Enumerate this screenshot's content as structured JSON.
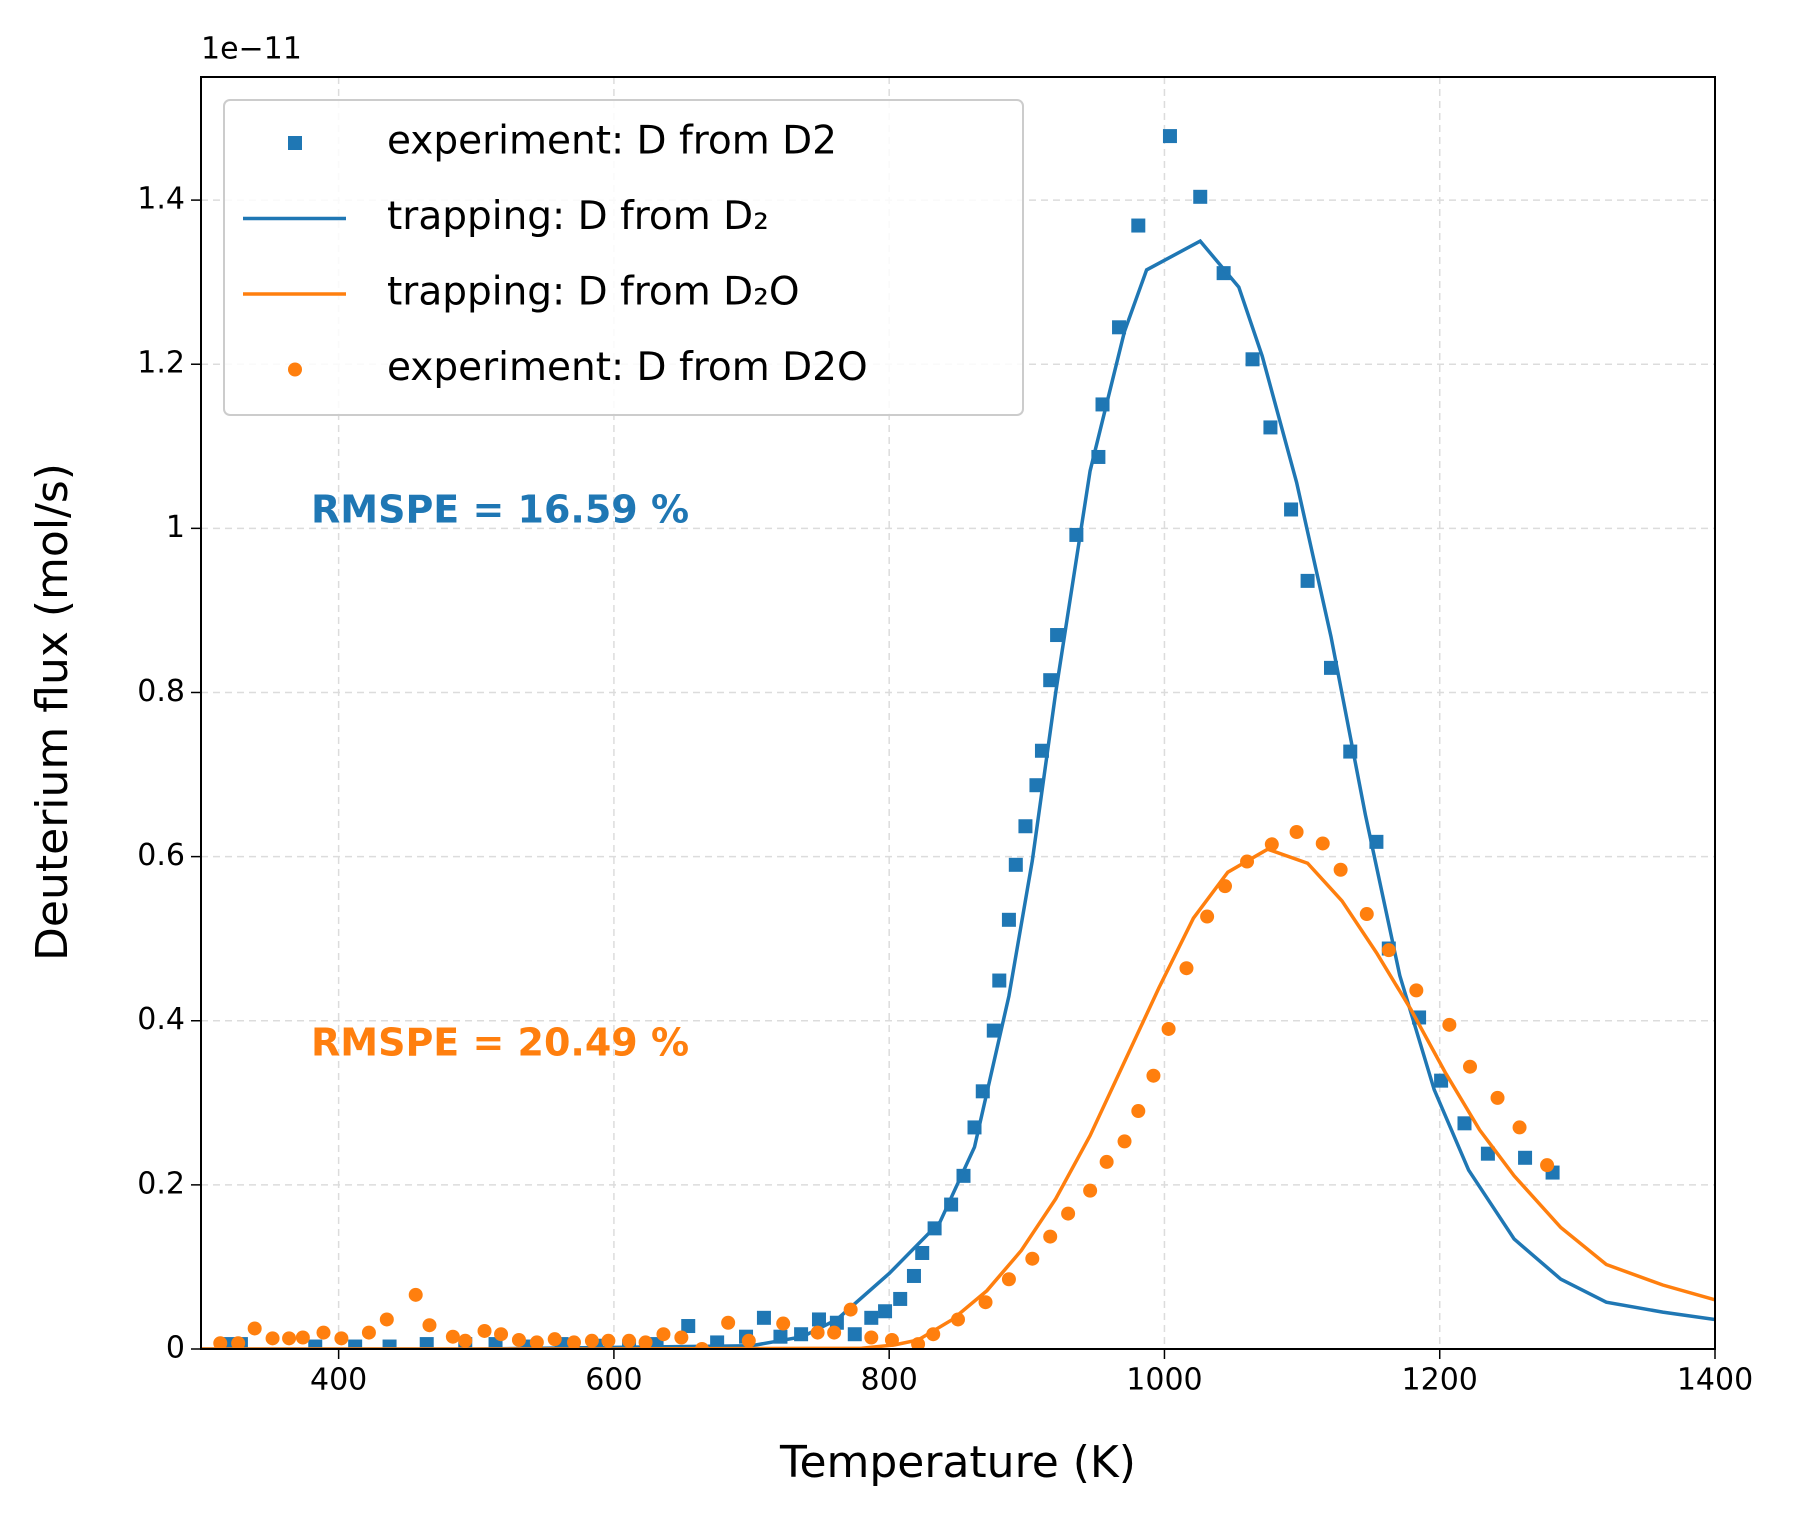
{
  "chart_data": {
    "type": "scatter-line",
    "x_label": "Temperature (K)",
    "y_label": "Deuterium flux (mol/s)",
    "y_offset_label": "1e−11",
    "xlim": [
      300,
      1400
    ],
    "xticks": [
      400,
      600,
      800,
      1000,
      1200,
      1400
    ],
    "ylim": [
      0,
      1.55
    ],
    "yticks": [
      0.0,
      0.2,
      0.4,
      0.6,
      0.8,
      1.0,
      1.2,
      1.4
    ],
    "grid": true,
    "legend": "upper left",
    "annotations": [
      {
        "text": "RMSPE = 16.59 %",
        "color": "#1f77b4"
      },
      {
        "text": "RMSPE = 20.49 %",
        "color": "#ff7f0e"
      }
    ],
    "series": [
      {
        "name": "experiment: D from D2",
        "color": "#1f77b4",
        "marker": "square",
        "x": [
          319,
          329,
          383,
          412,
          437,
          464,
          492,
          514,
          537,
          562,
          587,
          611,
          631,
          654,
          675,
          696,
          709,
          721,
          736,
          749,
          762,
          775,
          787,
          797,
          808,
          818,
          824,
          833,
          845,
          854,
          862,
          868,
          876,
          880,
          887,
          892,
          899,
          907,
          911,
          917,
          922,
          936,
          952,
          955,
          967,
          981,
          1004,
          1026,
          1043,
          1064,
          1077,
          1092,
          1104,
          1121,
          1135,
          1154,
          1163,
          1185,
          1201,
          1218,
          1235,
          1262,
          1282
        ],
        "values": [
          0.006,
          0.006,
          0.003,
          0.003,
          0.003,
          0.006,
          0.006,
          0.006,
          0.003,
          0.006,
          0.004,
          0.003,
          0.006,
          0.028,
          0.008,
          0.015,
          0.038,
          0.015,
          0.018,
          0.036,
          0.032,
          0.018,
          0.038,
          0.046,
          0.061,
          0.089,
          0.117,
          0.147,
          0.176,
          0.211,
          0.27,
          0.314,
          0.388,
          0.449,
          0.523,
          0.59,
          0.637,
          0.687,
          0.729,
          0.815,
          0.87,
          0.992,
          1.087,
          1.151,
          1.245,
          1.369,
          1.478,
          1.404,
          1.311,
          1.206,
          1.123,
          1.023,
          0.936,
          0.83,
          0.728,
          0.618,
          0.488,
          0.404,
          0.327,
          0.275,
          0.238,
          0.233,
          0.215
        ]
      },
      {
        "name": "trapping: D from D₂",
        "color": "#1f77b4",
        "marker": "line",
        "x": [
          300,
          500,
          700,
          737,
          762,
          800,
          837,
          862,
          887,
          904,
          921,
          946,
          971,
          987,
          1026,
          1054,
          1071,
          1096,
          1121,
          1146,
          1171,
          1196,
          1221,
          1254,
          1288,
          1321,
          1362,
          1400
        ],
        "values": [
          0,
          0,
          0.004,
          0.015,
          0.036,
          0.092,
          0.155,
          0.246,
          0.43,
          0.595,
          0.8,
          1.07,
          1.24,
          1.315,
          1.35,
          1.294,
          1.21,
          1.056,
          0.868,
          0.651,
          0.455,
          0.316,
          0.218,
          0.134,
          0.085,
          0.057,
          0.045,
          0.036
        ]
      },
      {
        "name": "trapping: D from D₂O",
        "color": "#ff7f0e",
        "marker": "line",
        "x": [
          300,
          600,
          780,
          804,
          821,
          846,
          871,
          896,
          921,
          946,
          971,
          996,
          1021,
          1046,
          1075,
          1104,
          1129,
          1154,
          1179,
          1204,
          1229,
          1254,
          1288,
          1321,
          1362,
          1400
        ],
        "values": [
          0,
          0,
          0.001,
          0.005,
          0.011,
          0.036,
          0.071,
          0.12,
          0.183,
          0.26,
          0.35,
          0.44,
          0.525,
          0.581,
          0.609,
          0.592,
          0.546,
          0.483,
          0.414,
          0.337,
          0.267,
          0.211,
          0.148,
          0.103,
          0.078,
          0.06
        ]
      },
      {
        "name": "experiment: D from D2O",
        "color": "#ff7f0e",
        "marker": "circle",
        "x": [
          314,
          327,
          339,
          352,
          364,
          374,
          389,
          402,
          422,
          435,
          456,
          466,
          483,
          492,
          506,
          518,
          531,
          544,
          557,
          571,
          584,
          596,
          611,
          623,
          636,
          649,
          664,
          683,
          698,
          723,
          748,
          760,
          772,
          787,
          802,
          821,
          832,
          850,
          870,
          887,
          904,
          917,
          930,
          946,
          958,
          971,
          981,
          992,
          1003,
          1016,
          1031,
          1044,
          1060,
          1078,
          1096,
          1115,
          1128,
          1147,
          1163,
          1183,
          1207,
          1222,
          1242,
          1258,
          1278
        ],
        "values": [
          0.007,
          0.007,
          0.025,
          0.013,
          0.013,
          0.014,
          0.02,
          0.013,
          0.02,
          0.036,
          0.066,
          0.029,
          0.015,
          0.01,
          0.022,
          0.018,
          0.011,
          0.008,
          0.012,
          0.008,
          0.01,
          0.01,
          0.01,
          0.008,
          0.018,
          0.014,
          0.0,
          0.032,
          0.01,
          0.031,
          0.02,
          0.02,
          0.048,
          0.014,
          0.011,
          0.006,
          0.018,
          0.036,
          0.057,
          0.085,
          0.11,
          0.137,
          0.165,
          0.193,
          0.228,
          0.253,
          0.29,
          0.333,
          0.39,
          0.464,
          0.527,
          0.564,
          0.594,
          0.615,
          0.63,
          0.616,
          0.584,
          0.53,
          0.486,
          0.437,
          0.395,
          0.344,
          0.306,
          0.27,
          0.224
        ]
      }
    ]
  }
}
